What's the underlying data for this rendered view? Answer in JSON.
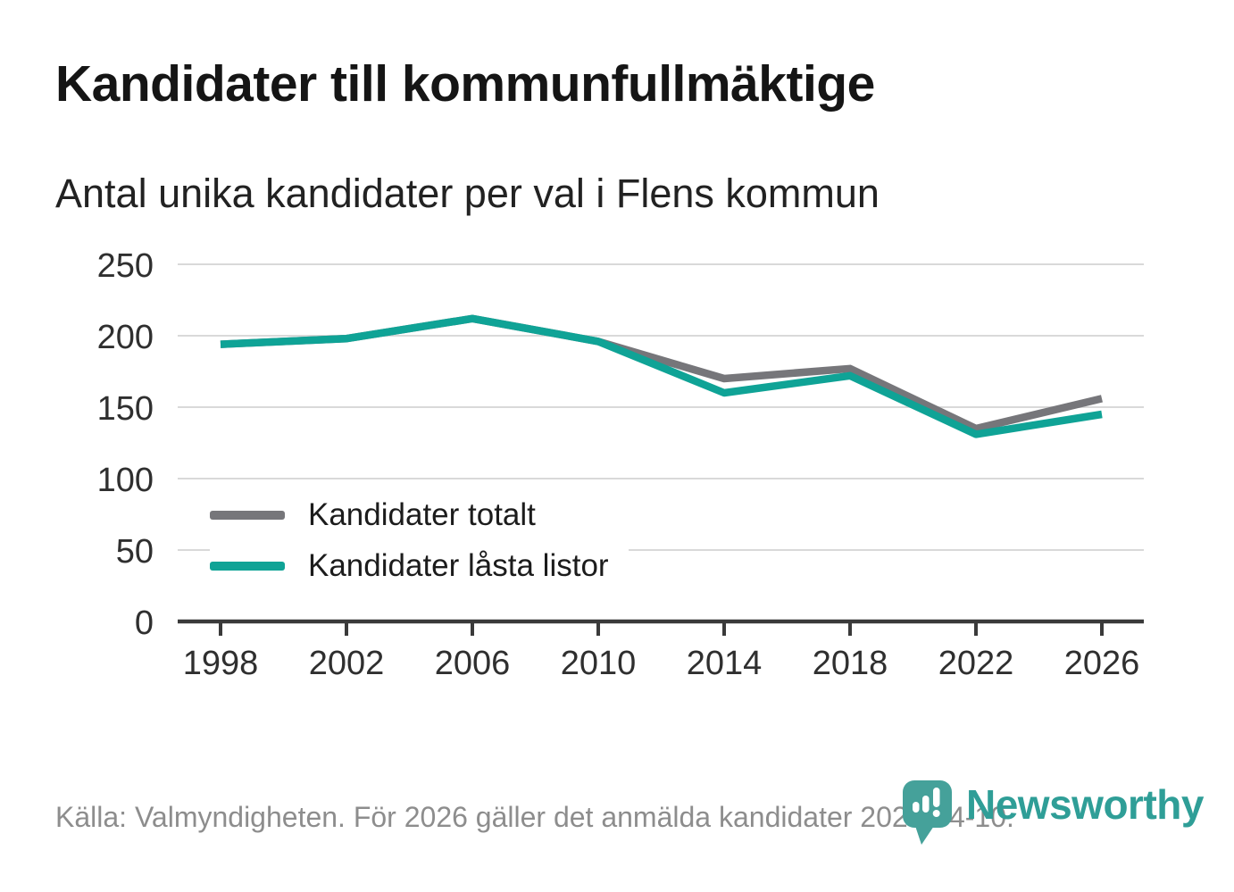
{
  "title": "Kandidater till kommunfullmäktige",
  "subtitle": "Antal unika kandidater per val i Flens kommun",
  "source": "Källa: Valmyndigheten. För 2026 gäller det anmälda kandidater 2026-04-10.",
  "logo": {
    "text": "Newsworthy",
    "icon": "newsworthy-chart-bubble-icon"
  },
  "colors": {
    "series_total": "#76767a",
    "series_locked": "#0fa396",
    "gridline": "#d9d9d9",
    "axis": "#3a3a3a",
    "tick_label": "#2f2f2f",
    "source_text": "#8d8d8d",
    "logo_teal": "#2f9e97",
    "logo_icon_teal": "#45a19a"
  },
  "chart_data": {
    "type": "line",
    "title": "Kandidater till kommunfullmäktige",
    "subtitle": "Antal unika kandidater per val i Flens kommun",
    "x": [
      1998,
      2002,
      2006,
      2010,
      2014,
      2018,
      2022,
      2026
    ],
    "x_tick_labels": [
      "1998",
      "2002",
      "2006",
      "2010",
      "2014",
      "2018",
      "2022",
      "2026"
    ],
    "series": [
      {
        "key": "total",
        "name": "Kandidater totalt",
        "color": "#76767a",
        "values": [
          194,
          198,
          212,
          196,
          170,
          177,
          135,
          156
        ]
      },
      {
        "key": "locked",
        "name": "Kandidater låsta listor",
        "color": "#0fa396",
        "values": [
          194,
          198,
          212,
          196,
          160,
          172,
          131,
          145
        ]
      }
    ],
    "xlabel": "",
    "ylabel": "",
    "ylim": [
      0,
      250
    ],
    "y_ticks": [
      0,
      50,
      100,
      150,
      200,
      250
    ],
    "grid": "horizontal",
    "legend_position": "inside-bottom-left"
  }
}
